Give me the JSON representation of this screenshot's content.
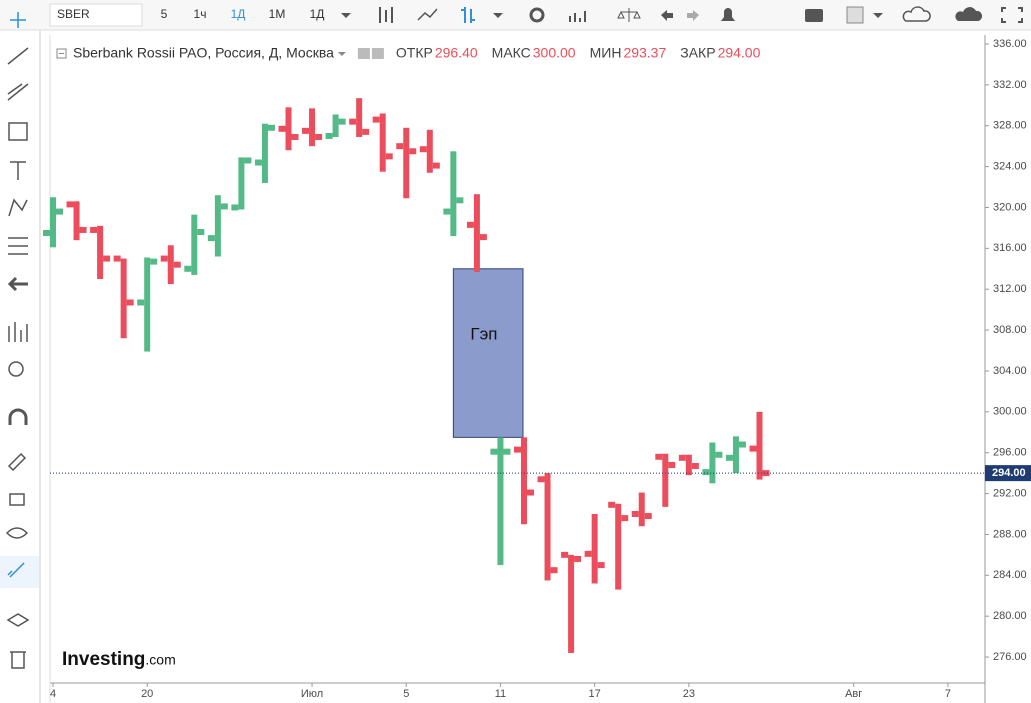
{
  "toolbar": {
    "symbol": "SBER",
    "buttons": [
      "5",
      "1ч",
      "1Д",
      "1М",
      "1Д"
    ]
  },
  "chart_data": {
    "type": "ohlc",
    "title": "Sberbank Rossii PAO, Россия, Д, Москва",
    "header": [
      {
        "label": "ОТКР",
        "text": "296.40"
      },
      {
        "label": "МАКС",
        "text": "300.00"
      },
      {
        "label": "МИН",
        "text": "293.37"
      },
      {
        "label": "ЗАКР",
        "text": "294.00"
      }
    ],
    "categories": [
      "4",
      null,
      null,
      null,
      "20",
      null,
      null,
      null,
      null,
      null,
      null,
      "Июл",
      null,
      null,
      null,
      "5",
      null,
      null,
      null,
      "11",
      null,
      null,
      null,
      "17",
      null,
      null,
      null,
      "23",
      null,
      null,
      null,
      null,
      null,
      null,
      "Авг",
      null,
      null,
      null,
      "7"
    ],
    "open": [
      317.5,
      320.3,
      317.8,
      315.0,
      310.7,
      315.0,
      314.0,
      317.0,
      320.0,
      324.4,
      327.7,
      327.5,
      327.0,
      328.4,
      328.6,
      326.0,
      325.7,
      319.6,
      318.3,
      296.1,
      296.3,
      293.4,
      286.0,
      286.1,
      290.9,
      290.0,
      295.6,
      295.5,
      294.1,
      295.5,
      296.4,
      null,
      null,
      null,
      null,
      null,
      null,
      null,
      null
    ],
    "high": [
      321.0,
      320.6,
      318.2,
      315.0,
      315.1,
      316.3,
      319.3,
      321.2,
      324.9,
      328.2,
      329.8,
      329.7,
      329.1,
      330.7,
      329.2,
      327.8,
      327.6,
      325.5,
      321.3,
      297.5,
      297.5,
      294.0,
      286.0,
      290.0,
      291.0,
      292.1,
      295.9,
      295.8,
      297.0,
      297.6,
      300.0,
      null,
      null,
      null,
      null,
      null,
      null,
      null,
      null
    ],
    "low": [
      316.1,
      316.8,
      313.0,
      307.2,
      305.9,
      312.5,
      313.4,
      315.2,
      319.8,
      322.4,
      325.6,
      326.0,
      326.9,
      326.9,
      323.5,
      320.9,
      323.4,
      317.2,
      313.7,
      285.0,
      289.0,
      283.5,
      276.4,
      283.2,
      282.6,
      288.8,
      290.7,
      293.8,
      293.0,
      294.0,
      293.37,
      null,
      null,
      null,
      null,
      null,
      null,
      null,
      null
    ],
    "close": [
      319.6,
      317.8,
      315.0,
      310.7,
      314.7,
      314.4,
      317.6,
      320.1,
      324.6,
      327.8,
      326.9,
      326.9,
      328.4,
      327.4,
      325.0,
      325.5,
      324.1,
      320.7,
      317.1,
      296.1,
      292.1,
      284.5,
      285.6,
      285.0,
      289.6,
      289.8,
      294.8,
      294.7,
      295.8,
      296.8,
      294.0,
      null,
      null,
      null,
      null,
      null,
      null,
      null,
      null
    ],
    "up_color": "#53b987",
    "down_color": "#eb4d5c",
    "ylim": [
      273.46,
      336.88
    ],
    "yticks": [
      {
        "value": 276,
        "label": "276.00"
      },
      {
        "value": 280,
        "label": "280.00"
      },
      {
        "value": 284,
        "label": "284.00"
      },
      {
        "value": 288,
        "label": "288.00"
      },
      {
        "value": 292,
        "label": "292.00"
      },
      {
        "value": 296,
        "label": "296.00"
      },
      {
        "value": 300,
        "label": "300.00"
      },
      {
        "value": 304,
        "label": "304.00"
      },
      {
        "value": 308,
        "label": "308.00"
      },
      {
        "value": 312,
        "label": "312.00"
      },
      {
        "value": 316,
        "label": "316.00"
      },
      {
        "value": 320,
        "label": "320.00"
      },
      {
        "value": 324,
        "label": "324.00"
      },
      {
        "value": 328,
        "label": "328.00"
      },
      {
        "value": 332,
        "label": "332.00"
      },
      {
        "value": 336,
        "label": "336.00"
      }
    ],
    "last_price": {
      "value": 294,
      "label": "294.00"
    },
    "gap": {
      "label": "Гэп",
      "top": 314.0,
      "bottom": 297.5,
      "color": "#8a9bcc"
    },
    "watermark": {
      "brand": "Investing",
      "suffix": ".com"
    }
  }
}
